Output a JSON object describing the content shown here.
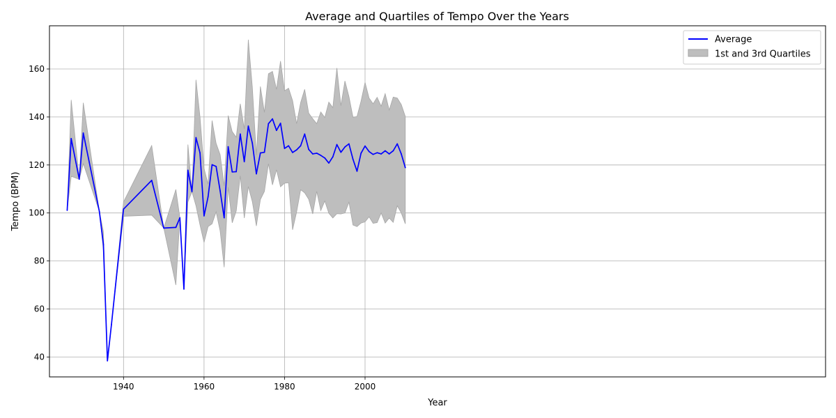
{
  "chart_data": {
    "type": "line",
    "title": "Average and Quartiles of Tempo Over the Years",
    "xlabel": "Year",
    "ylabel": "Tempo (BPM)",
    "xlim": [
      1921.6,
      2114.4
    ],
    "ylim": [
      31.7,
      178.0
    ],
    "xticks": [
      1940,
      1960,
      1980,
      2000
    ],
    "yticks": [
      40,
      60,
      80,
      100,
      120,
      140,
      160
    ],
    "grid": true,
    "legend_position": "top-right",
    "colors": {
      "average": "#0000ff",
      "band": "#bebebe",
      "band_edge": "#a6a6a6"
    },
    "series": [
      {
        "name": "Average",
        "style": "line",
        "points": [
          [
            1926,
            101.1
          ],
          [
            1927,
            131.0
          ],
          [
            1929,
            114.1
          ],
          [
            1930,
            133.3
          ],
          [
            1934,
            100.6
          ],
          [
            1935,
            86.9
          ],
          [
            1936,
            38.4
          ],
          [
            1937,
            53.5
          ],
          [
            1940,
            101.6
          ],
          [
            1947,
            113.6
          ],
          [
            1950,
            93.7
          ],
          [
            1953,
            94.0
          ],
          [
            1954,
            98.0
          ],
          [
            1955,
            68.3
          ],
          [
            1956,
            117.8
          ],
          [
            1957,
            108.9
          ],
          [
            1958,
            131.4
          ],
          [
            1959,
            125.0
          ],
          [
            1960,
            98.8
          ],
          [
            1961,
            106.7
          ],
          [
            1962,
            120.1
          ],
          [
            1963,
            119.4
          ],
          [
            1964,
            109.2
          ],
          [
            1965,
            98.0
          ],
          [
            1966,
            127.6
          ],
          [
            1967,
            117.1
          ],
          [
            1968,
            117.2
          ],
          [
            1969,
            132.9
          ],
          [
            1970,
            121.4
          ],
          [
            1971,
            136.2
          ],
          [
            1972,
            129.1
          ],
          [
            1973,
            116.3
          ],
          [
            1974,
            125.0
          ],
          [
            1975,
            125.3
          ],
          [
            1976,
            137.2
          ],
          [
            1977,
            139.2
          ],
          [
            1978,
            134.4
          ],
          [
            1979,
            137.4
          ],
          [
            1980,
            126.9
          ],
          [
            1981,
            128.0
          ],
          [
            1982,
            125.2
          ],
          [
            1983,
            126.3
          ],
          [
            1984,
            128.0
          ],
          [
            1985,
            132.9
          ],
          [
            1986,
            126.5
          ],
          [
            1987,
            124.6
          ],
          [
            1988,
            124.9
          ],
          [
            1989,
            124.0
          ],
          [
            1990,
            122.9
          ],
          [
            1991,
            120.8
          ],
          [
            1992,
            123.4
          ],
          [
            1993,
            128.5
          ],
          [
            1994,
            125.3
          ],
          [
            1995,
            127.5
          ],
          [
            1996,
            128.8
          ],
          [
            1997,
            122.4
          ],
          [
            1998,
            117.4
          ],
          [
            1999,
            124.9
          ],
          [
            2000,
            127.9
          ],
          [
            2001,
            125.6
          ],
          [
            2002,
            124.4
          ],
          [
            2003,
            125.1
          ],
          [
            2004,
            124.6
          ],
          [
            2005,
            125.9
          ],
          [
            2006,
            124.6
          ],
          [
            2007,
            125.9
          ],
          [
            2008,
            128.8
          ],
          [
            2009,
            124.6
          ],
          [
            2010,
            118.9
          ]
        ]
      },
      {
        "name": "1st and 3rd Quartiles",
        "style": "band",
        "points": [
          [
            1926,
            101.1,
            101.1
          ],
          [
            1927,
            115.3,
            147.1
          ],
          [
            1929,
            114.0,
            114.3
          ],
          [
            1930,
            120.6,
            145.9
          ],
          [
            1934,
            100.6,
            100.6
          ],
          [
            1935,
            84.3,
            92.3
          ],
          [
            1936,
            38.4,
            38.4
          ],
          [
            1937,
            53.5,
            53.5
          ],
          [
            1940,
            98.6,
            104.6
          ],
          [
            1947,
            99.1,
            128.1
          ],
          [
            1950,
            93.7,
            93.7
          ],
          [
            1953,
            70.0,
            109.8
          ],
          [
            1954,
            98.0,
            98.0
          ],
          [
            1955,
            68.3,
            68.3
          ],
          [
            1956,
            104.6,
            128.5
          ],
          [
            1957,
            108.9,
            108.9
          ],
          [
            1958,
            103.0,
            155.5
          ],
          [
            1959,
            95.0,
            140.0
          ],
          [
            1960,
            87.7,
            118.6
          ],
          [
            1961,
            94.3,
            112.0
          ],
          [
            1962,
            95.5,
            138.5
          ],
          [
            1963,
            100.5,
            129.0
          ],
          [
            1964,
            92.5,
            124.3
          ],
          [
            1965,
            77.4,
            111.3
          ],
          [
            1966,
            110.7,
            140.6
          ],
          [
            1967,
            95.9,
            133.9
          ],
          [
            1968,
            100.8,
            131.6
          ],
          [
            1969,
            115.5,
            145.5
          ],
          [
            1970,
            97.9,
            135.0
          ],
          [
            1971,
            111.0,
            172.2
          ],
          [
            1972,
            104.7,
            152.4
          ],
          [
            1973,
            94.6,
            124.1
          ],
          [
            1974,
            105.6,
            152.7
          ],
          [
            1975,
            109.0,
            141.9
          ],
          [
            1976,
            120.5,
            158.0
          ],
          [
            1977,
            111.7,
            159.0
          ],
          [
            1978,
            118.0,
            151.5
          ],
          [
            1979,
            110.9,
            163.3
          ],
          [
            1980,
            112.4,
            150.9
          ],
          [
            1981,
            112.6,
            152.0
          ],
          [
            1982,
            93.0,
            146.8
          ],
          [
            1983,
            100.4,
            137.2
          ],
          [
            1984,
            109.7,
            146.0
          ],
          [
            1985,
            108.4,
            151.5
          ],
          [
            1986,
            105.7,
            141.6
          ],
          [
            1987,
            99.6,
            139.3
          ],
          [
            1988,
            109.0,
            137.2
          ],
          [
            1989,
            101.0,
            142.1
          ],
          [
            1990,
            105.0,
            139.8
          ],
          [
            1991,
            99.9,
            146.2
          ],
          [
            1992,
            97.9,
            143.9
          ],
          [
            1993,
            99.7,
            160.4
          ],
          [
            1994,
            99.6,
            144.7
          ],
          [
            1995,
            100.0,
            155.0
          ],
          [
            1996,
            104.5,
            148.5
          ],
          [
            1997,
            95.0,
            139.9
          ],
          [
            1998,
            94.3,
            140.2
          ],
          [
            1999,
            95.8,
            146.6
          ],
          [
            2000,
            96.3,
            154.4
          ],
          [
            2001,
            98.4,
            147.9
          ],
          [
            2002,
            95.7,
            145.5
          ],
          [
            2003,
            96.0,
            148.2
          ],
          [
            2004,
            100.0,
            144.5
          ],
          [
            2005,
            95.8,
            149.7
          ],
          [
            2006,
            97.9,
            142.9
          ],
          [
            2007,
            96.1,
            148.3
          ],
          [
            2008,
            103.0,
            147.9
          ],
          [
            2009,
            100.0,
            145.2
          ],
          [
            2010,
            95.5,
            140.2
          ]
        ]
      }
    ]
  }
}
